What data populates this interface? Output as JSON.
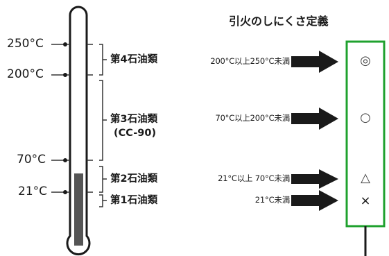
{
  "title": "引火のしにくさ定義",
  "temperatures": {
    "t250": "250°C",
    "t200": "200°C",
    "t70": "70°C",
    "t21": "21°C"
  },
  "classes": {
    "c4": "第4石油類",
    "c3": "第3石油類",
    "c3_sub": "(CC-90)",
    "c2": "第2石油類",
    "c1": "第1石油類"
  },
  "ranges": {
    "r4": "200°C以上250°C未満",
    "r3": "70°C以上200°C未満",
    "r2": "21°C以上 70°C未満",
    "r1": "21°C未満"
  },
  "ratings": {
    "r4": "◎",
    "r3": "○",
    "r2": "△",
    "r1": "×"
  },
  "colors": {
    "frame": "#1fa12e",
    "mercury": "#555555",
    "arrow": "#1a1a1a",
    "line": "#333333"
  }
}
